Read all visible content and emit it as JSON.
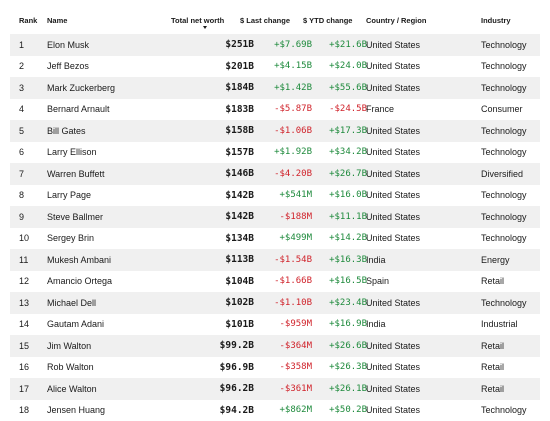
{
  "colors": {
    "positive": "#1e8a3c",
    "negative": "#d0232b",
    "row_stripe": "#f0f0f0"
  },
  "header": {
    "rank": "Rank",
    "name": "Name",
    "total_net_worth": "Total net worth",
    "last_change": "$ Last change",
    "ytd_change": "$ YTD change",
    "country": "Country / Region",
    "industry": "Industry",
    "sort_icon": "sort-descending-icon"
  },
  "rows": [
    {
      "rank": "1",
      "name": "Elon Musk",
      "worth": "$251B",
      "last": "+$7.69B",
      "ytd": "+$21.6B",
      "country": "United States",
      "industry": "Technology"
    },
    {
      "rank": "2",
      "name": "Jeff Bezos",
      "worth": "$201B",
      "last": "+$4.15B",
      "ytd": "+$24.0B",
      "country": "United States",
      "industry": "Technology"
    },
    {
      "rank": "3",
      "name": "Mark Zuckerberg",
      "worth": "$184B",
      "last": "+$1.42B",
      "ytd": "+$55.6B",
      "country": "United States",
      "industry": "Technology"
    },
    {
      "rank": "4",
      "name": "Bernard Arnault",
      "worth": "$183B",
      "last": "-$5.87B",
      "ytd": "-$24.5B",
      "country": "France",
      "industry": "Consumer"
    },
    {
      "rank": "5",
      "name": "Bill Gates",
      "worth": "$158B",
      "last": "-$1.06B",
      "ytd": "+$17.3B",
      "country": "United States",
      "industry": "Technology"
    },
    {
      "rank": "6",
      "name": "Larry Ellison",
      "worth": "$157B",
      "last": "+$1.92B",
      "ytd": "+$34.2B",
      "country": "United States",
      "industry": "Technology"
    },
    {
      "rank": "7",
      "name": "Warren Buffett",
      "worth": "$146B",
      "last": "-$4.20B",
      "ytd": "+$26.7B",
      "country": "United States",
      "industry": "Diversified"
    },
    {
      "rank": "8",
      "name": "Larry Page",
      "worth": "$142B",
      "last": "+$541M",
      "ytd": "+$16.0B",
      "country": "United States",
      "industry": "Technology"
    },
    {
      "rank": "9",
      "name": "Steve Ballmer",
      "worth": "$142B",
      "last": "-$188M",
      "ytd": "+$11.1B",
      "country": "United States",
      "industry": "Technology"
    },
    {
      "rank": "10",
      "name": "Sergey Brin",
      "worth": "$134B",
      "last": "+$499M",
      "ytd": "+$14.2B",
      "country": "United States",
      "industry": "Technology"
    },
    {
      "rank": "11",
      "name": "Mukesh Ambani",
      "worth": "$113B",
      "last": "-$1.54B",
      "ytd": "+$16.3B",
      "country": "India",
      "industry": "Energy"
    },
    {
      "rank": "12",
      "name": "Amancio Ortega",
      "worth": "$104B",
      "last": "-$1.66B",
      "ytd": "+$16.5B",
      "country": "Spain",
      "industry": "Retail"
    },
    {
      "rank": "13",
      "name": "Michael Dell",
      "worth": "$102B",
      "last": "-$1.10B",
      "ytd": "+$23.4B",
      "country": "United States",
      "industry": "Technology"
    },
    {
      "rank": "14",
      "name": "Gautam Adani",
      "worth": "$101B",
      "last": "-$959M",
      "ytd": "+$16.9B",
      "country": "India",
      "industry": "Industrial"
    },
    {
      "rank": "15",
      "name": "Jim Walton",
      "worth": "$99.2B",
      "last": "-$364M",
      "ytd": "+$26.6B",
      "country": "United States",
      "industry": "Retail"
    },
    {
      "rank": "16",
      "name": "Rob Walton",
      "worth": "$96.9B",
      "last": "-$358M",
      "ytd": "+$26.3B",
      "country": "United States",
      "industry": "Retail"
    },
    {
      "rank": "17",
      "name": "Alice Walton",
      "worth": "$96.2B",
      "last": "-$361M",
      "ytd": "+$26.1B",
      "country": "United States",
      "industry": "Retail"
    },
    {
      "rank": "18",
      "name": "Jensen Huang",
      "worth": "$94.2B",
      "last": "+$862M",
      "ytd": "+$50.2B",
      "country": "United States",
      "industry": "Technology"
    }
  ]
}
